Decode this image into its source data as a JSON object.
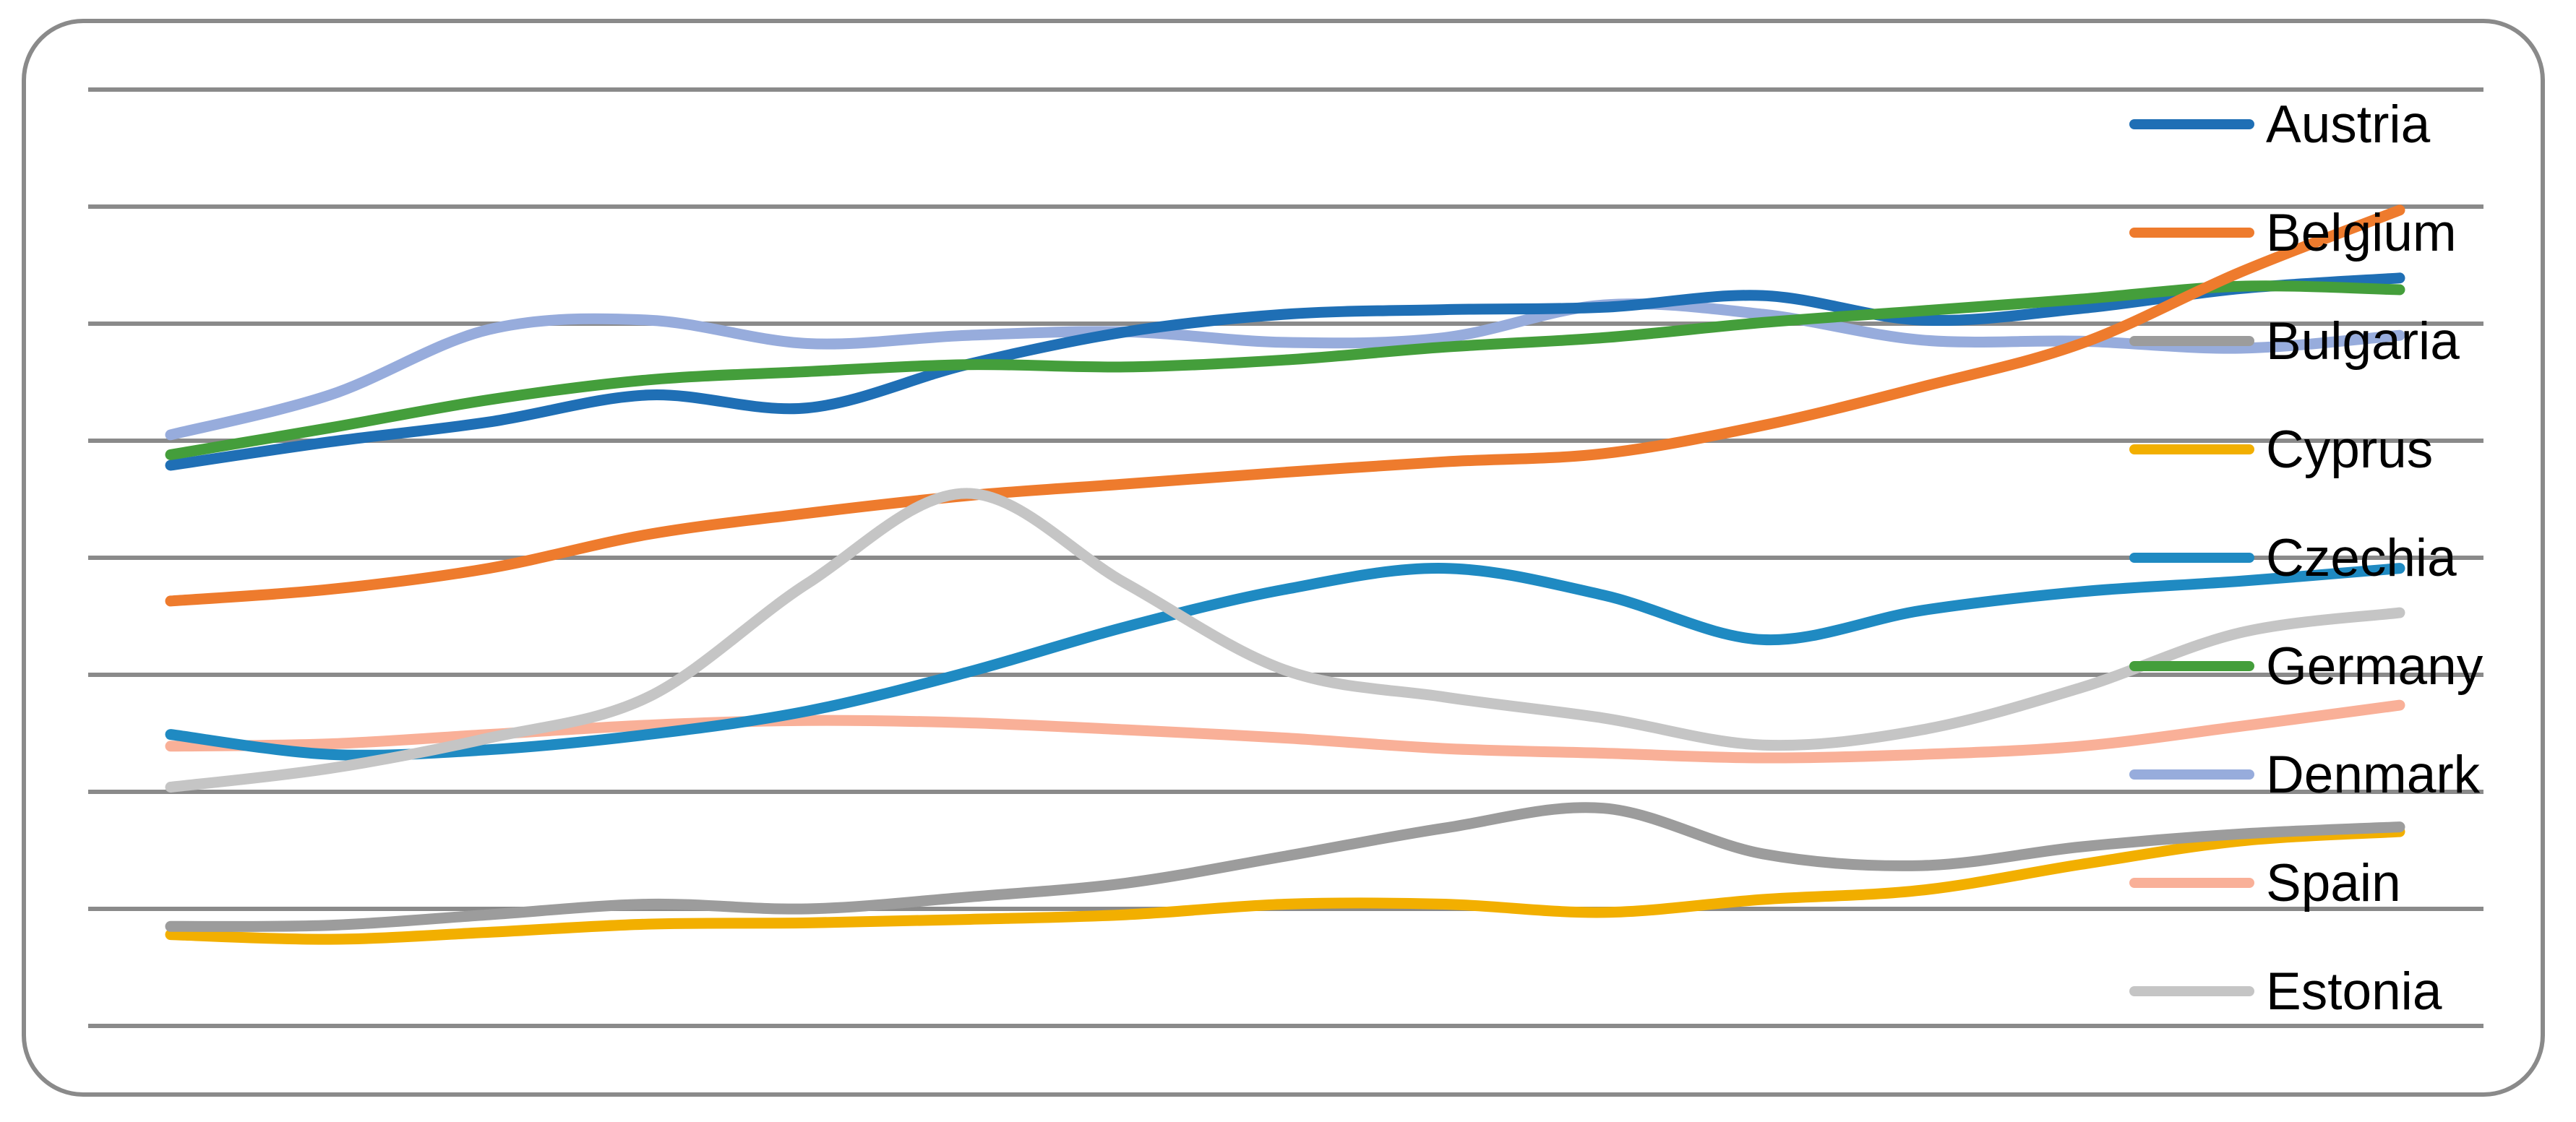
{
  "chart_data": {
    "type": "line",
    "title": "",
    "subtitle": "",
    "xlabel": "",
    "ylabel": "",
    "x_axis_labels_visible": false,
    "y_axis_labels_visible": false,
    "smoothed_lines": true,
    "legend_position": "right",
    "grid": "horizontal-only",
    "x": [
      1,
      2,
      3,
      4,
      5,
      6,
      7,
      8,
      9,
      10,
      11,
      12,
      13,
      14,
      15
    ],
    "y_unit": "gridline-intervals (bottom gridline = 0, one unit per gridline)",
    "ylim": [
      -0.65,
      8.6
    ],
    "gridlines": {
      "count": 9,
      "values": [
        0,
        1,
        2,
        3,
        4,
        5,
        6,
        7,
        8
      ],
      "color": "#8A8A8A"
    },
    "series": [
      {
        "name": "Austria",
        "color": "#1F6FB5",
        "values": [
          4.79,
          4.99,
          5.16,
          5.39,
          5.28,
          5.65,
          5.93,
          6.08,
          6.12,
          6.14,
          6.24,
          6.03,
          6.13,
          6.3,
          6.39
        ]
      },
      {
        "name": "Belgium",
        "color": "#EE7B2D",
        "values": [
          3.63,
          3.73,
          3.91,
          4.2,
          4.38,
          4.53,
          4.63,
          4.73,
          4.82,
          4.89,
          5.13,
          5.46,
          5.83,
          6.44,
          6.97
        ]
      },
      {
        "name": "Bulgaria",
        "color": "#9C9C9C",
        "values": [
          0.85,
          0.86,
          0.95,
          1.04,
          1.0,
          1.1,
          1.22,
          1.45,
          1.69,
          1.86,
          1.47,
          1.37,
          1.53,
          1.64,
          1.7
        ]
      },
      {
        "name": "Cyprus",
        "color": "#F2AF00",
        "values": [
          0.78,
          0.74,
          0.8,
          0.87,
          0.88,
          0.91,
          0.95,
          1.04,
          1.04,
          0.97,
          1.08,
          1.16,
          1.38,
          1.58,
          1.66
        ]
      },
      {
        "name": "Czechia",
        "color": "#1F8AC2",
        "values": [
          2.49,
          2.32,
          2.36,
          2.49,
          2.69,
          3.02,
          3.41,
          3.73,
          3.91,
          3.68,
          3.3,
          3.55,
          3.71,
          3.8,
          3.91
        ]
      },
      {
        "name": "Germany",
        "color": "#449E3B",
        "values": [
          4.88,
          5.11,
          5.35,
          5.52,
          5.59,
          5.65,
          5.63,
          5.69,
          5.8,
          5.88,
          6.01,
          6.11,
          6.21,
          6.32,
          6.29
        ]
      },
      {
        "name": "Denmark",
        "color": "#97ACDC",
        "values": [
          5.05,
          5.39,
          5.95,
          6.03,
          5.83,
          5.9,
          5.93,
          5.84,
          5.88,
          6.16,
          6.08,
          5.86,
          5.85,
          5.79,
          5.9
        ]
      },
      {
        "name": "Spain",
        "color": "#F9B098",
        "values": [
          2.39,
          2.41,
          2.49,
          2.57,
          2.61,
          2.59,
          2.53,
          2.46,
          2.37,
          2.33,
          2.29,
          2.32,
          2.39,
          2.56,
          2.74
        ]
      },
      {
        "name": "Estonia",
        "color": "#C5C5C5",
        "values": [
          2.04,
          2.2,
          2.46,
          2.81,
          3.78,
          4.55,
          3.78,
          3.04,
          2.81,
          2.63,
          2.4,
          2.53,
          2.89,
          3.36,
          3.53
        ]
      }
    ]
  },
  "frame": {
    "border_color": "#8A8A8A",
    "background": "#FFFFFF"
  },
  "legend": {
    "items": [
      {
        "label": "Austria"
      },
      {
        "label": "Belgium"
      },
      {
        "label": "Bulgaria"
      },
      {
        "label": "Cyprus"
      },
      {
        "label": "Czechia"
      },
      {
        "label": "Germany"
      },
      {
        "label": "Denmark"
      },
      {
        "label": "Spain"
      },
      {
        "label": "Estonia"
      }
    ]
  }
}
